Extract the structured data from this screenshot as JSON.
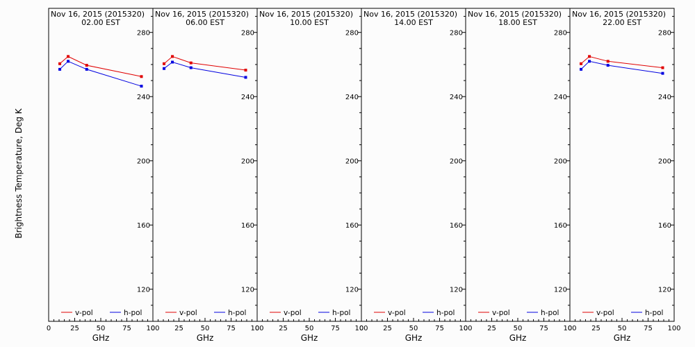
{
  "chart_data": {
    "type": "line",
    "ylabel": "Brightness Temperature, Deg K",
    "xlabel": "GHz",
    "xlim": [
      0,
      100
    ],
    "ylim": [
      100,
      295
    ],
    "xticks": [
      "0",
      "25",
      "50",
      "75",
      "100"
    ],
    "yticks": [
      "120",
      "160",
      "200",
      "240",
      "280"
    ],
    "legend": {
      "placement": "bottom",
      "entries": [
        "v-pol",
        "h-pol"
      ]
    },
    "colors": {
      "v-pol": "#e00000",
      "h-pol": "#0000e0"
    },
    "grid": false,
    "panels": [
      {
        "title_line1": "Nov 16, 2015 (2015320)",
        "title_line2": "02.00 EST",
        "series": [
          {
            "name": "v-pol",
            "x": [
              10.7,
              18.7,
              36.5,
              89
            ],
            "y": [
              260.5,
              265,
              259.5,
              252.5
            ]
          },
          {
            "name": "h-pol",
            "x": [
              10.7,
              18.7,
              36.5,
              89
            ],
            "y": [
              257,
              262,
              257,
              246.5
            ]
          }
        ]
      },
      {
        "title_line1": "Nov 16, 2015 (2015320)",
        "title_line2": "06.00 EST",
        "series": [
          {
            "name": "v-pol",
            "x": [
              10.7,
              18.7,
              36.5,
              89
            ],
            "y": [
              260.5,
              265,
              261,
              256.5
            ]
          },
          {
            "name": "h-pol",
            "x": [
              10.7,
              18.7,
              36.5,
              89
            ],
            "y": [
              257.5,
              261.5,
              258,
              252
            ]
          }
        ]
      },
      {
        "title_line1": "Nov 16, 2015 (2015320)",
        "title_line2": "10.00 EST",
        "series": [
          {
            "name": "v-pol",
            "x": [],
            "y": []
          },
          {
            "name": "h-pol",
            "x": [],
            "y": []
          }
        ]
      },
      {
        "title_line1": "Nov 16, 2015 (2015320)",
        "title_line2": "14.00 EST",
        "series": [
          {
            "name": "v-pol",
            "x": [],
            "y": []
          },
          {
            "name": "h-pol",
            "x": [],
            "y": []
          }
        ]
      },
      {
        "title_line1": "Nov 16, 2015 (2015320)",
        "title_line2": "18.00 EST",
        "series": [
          {
            "name": "v-pol",
            "x": [],
            "y": []
          },
          {
            "name": "h-pol",
            "x": [],
            "y": []
          }
        ]
      },
      {
        "title_line1": "Nov 16, 2015 (2015320)",
        "title_line2": "22.00 EST",
        "series": [
          {
            "name": "v-pol",
            "x": [
              10.7,
              18.7,
              36.5,
              89
            ],
            "y": [
              260.5,
              265,
              262,
              258
            ]
          },
          {
            "name": "h-pol",
            "x": [
              10.7,
              18.7,
              36.5,
              89
            ],
            "y": [
              257,
              262,
              259.5,
              254.5
            ]
          }
        ]
      }
    ]
  }
}
